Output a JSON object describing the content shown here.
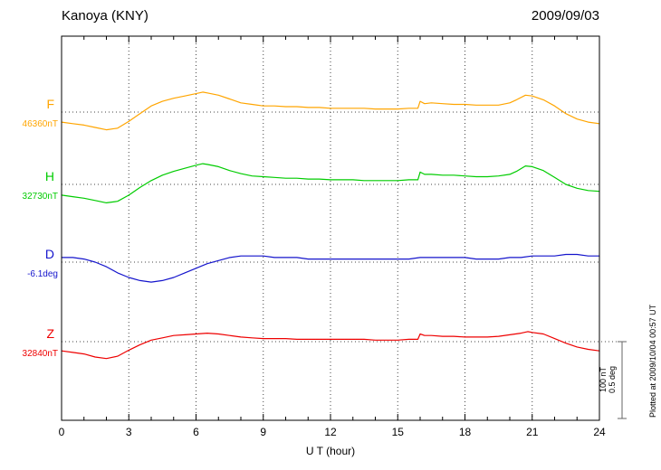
{
  "header": {
    "station": "Kanoya (KNY)",
    "date": "2009/09/03"
  },
  "xaxis": {
    "label": "U T (hour)",
    "ticks": [
      0,
      3,
      6,
      9,
      12,
      15,
      18,
      21,
      24
    ],
    "min": 0,
    "max": 24
  },
  "scale_bar": {
    "label_nt": "100 nT",
    "label_deg": "0.5 deg"
  },
  "footer_note": "Plotted at 2009/10/04 00:57 UT",
  "chart_data": {
    "type": "line",
    "title": "Kanoya (KNY) magnetogram",
    "date": "2009/09/03",
    "xlabel": "U T (hour)",
    "x_range": [
      0,
      24
    ],
    "grid": "dotted vertical every 3 hours, dotted horizontal baseline per component",
    "legend_position": "left labels per trace",
    "scale": {
      "nT_per_division": 100,
      "deg_per_division": 0.5
    },
    "series": [
      {
        "name": "F",
        "unit": "nT",
        "baseline_value": 46360,
        "baseline_label": "46360nT",
        "color": "#FFA500",
        "points": [
          [
            0,
            -13
          ],
          [
            0.5,
            -15
          ],
          [
            1,
            -17
          ],
          [
            1.5,
            -20
          ],
          [
            2,
            -23
          ],
          [
            2.5,
            -21
          ],
          [
            3,
            -12
          ],
          [
            3.5,
            -2
          ],
          [
            4,
            8
          ],
          [
            4.5,
            14
          ],
          [
            5,
            18
          ],
          [
            5.5,
            21
          ],
          [
            6,
            24
          ],
          [
            6.3,
            26
          ],
          [
            6.5,
            25
          ],
          [
            7,
            22
          ],
          [
            7.5,
            17
          ],
          [
            8,
            12
          ],
          [
            8.5,
            10
          ],
          [
            9,
            8
          ],
          [
            9.5,
            8
          ],
          [
            10,
            7
          ],
          [
            10.5,
            7
          ],
          [
            11,
            6
          ],
          [
            11.5,
            6
          ],
          [
            12,
            5
          ],
          [
            12.5,
            5
          ],
          [
            13,
            5
          ],
          [
            13.5,
            5
          ],
          [
            14,
            4
          ],
          [
            14.5,
            4
          ],
          [
            15,
            4
          ],
          [
            15.5,
            5
          ],
          [
            15.9,
            5
          ],
          [
            16,
            14
          ],
          [
            16.2,
            11
          ],
          [
            16.5,
            12
          ],
          [
            17,
            11
          ],
          [
            17.5,
            10
          ],
          [
            18,
            10
          ],
          [
            18.5,
            9
          ],
          [
            19,
            9
          ],
          [
            19.5,
            9
          ],
          [
            20,
            12
          ],
          [
            20.3,
            16
          ],
          [
            20.7,
            22
          ],
          [
            21,
            21
          ],
          [
            21.5,
            16
          ],
          [
            22,
            8
          ],
          [
            22.5,
            -2
          ],
          [
            23,
            -9
          ],
          [
            23.5,
            -13
          ],
          [
            24,
            -15
          ]
        ]
      },
      {
        "name": "H",
        "unit": "nT",
        "baseline_value": 32730,
        "baseline_label": "32730nT",
        "color": "#00CC00",
        "points": [
          [
            0,
            -14
          ],
          [
            0.5,
            -16
          ],
          [
            1,
            -18
          ],
          [
            1.5,
            -21
          ],
          [
            2,
            -24
          ],
          [
            2.5,
            -22
          ],
          [
            3,
            -14
          ],
          [
            3.5,
            -4
          ],
          [
            4,
            5
          ],
          [
            4.5,
            12
          ],
          [
            5,
            17
          ],
          [
            5.5,
            21
          ],
          [
            6,
            25
          ],
          [
            6.3,
            27
          ],
          [
            6.5,
            26
          ],
          [
            7,
            23
          ],
          [
            7.5,
            18
          ],
          [
            8,
            14
          ],
          [
            8.5,
            11
          ],
          [
            9,
            10
          ],
          [
            9.5,
            9
          ],
          [
            10,
            8
          ],
          [
            10.5,
            8
          ],
          [
            11,
            7
          ],
          [
            11.5,
            7
          ],
          [
            12,
            6
          ],
          [
            12.5,
            6
          ],
          [
            13,
            6
          ],
          [
            13.5,
            5
          ],
          [
            14,
            5
          ],
          [
            14.5,
            5
          ],
          [
            15,
            5
          ],
          [
            15.5,
            6
          ],
          [
            15.9,
            6
          ],
          [
            16,
            16
          ],
          [
            16.2,
            13
          ],
          [
            16.5,
            13
          ],
          [
            17,
            12
          ],
          [
            17.5,
            12
          ],
          [
            18,
            11
          ],
          [
            18.5,
            10
          ],
          [
            19,
            10
          ],
          [
            19.5,
            11
          ],
          [
            20,
            13
          ],
          [
            20.3,
            17
          ],
          [
            20.7,
            24
          ],
          [
            21,
            23
          ],
          [
            21.5,
            18
          ],
          [
            22,
            9
          ],
          [
            22.5,
            0
          ],
          [
            23,
            -5
          ],
          [
            23.5,
            -8
          ],
          [
            24,
            -9
          ]
        ]
      },
      {
        "name": "D",
        "unit": "deg",
        "baseline_value": -6.1,
        "baseline_label": "-6.1deg",
        "color": "#1414CC",
        "points": [
          [
            0,
            0.03
          ],
          [
            0.5,
            0.03
          ],
          [
            1,
            0.02
          ],
          [
            1.5,
            0
          ],
          [
            2,
            -0.03
          ],
          [
            2.5,
            -0.07
          ],
          [
            3,
            -0.1
          ],
          [
            3.5,
            -0.12
          ],
          [
            4,
            -0.13
          ],
          [
            4.5,
            -0.12
          ],
          [
            5,
            -0.1
          ],
          [
            5.5,
            -0.07
          ],
          [
            6,
            -0.04
          ],
          [
            6.5,
            -0.01
          ],
          [
            7,
            0.01
          ],
          [
            7.5,
            0.03
          ],
          [
            8,
            0.04
          ],
          [
            8.5,
            0.04
          ],
          [
            9,
            0.04
          ],
          [
            9.5,
            0.03
          ],
          [
            10,
            0.03
          ],
          [
            10.5,
            0.03
          ],
          [
            11,
            0.02
          ],
          [
            11.5,
            0.02
          ],
          [
            12,
            0.02
          ],
          [
            12.5,
            0.02
          ],
          [
            13,
            0.02
          ],
          [
            13.5,
            0.02
          ],
          [
            14,
            0.02
          ],
          [
            14.5,
            0.02
          ],
          [
            15,
            0.02
          ],
          [
            15.5,
            0.02
          ],
          [
            16,
            0.03
          ],
          [
            16.5,
            0.03
          ],
          [
            17,
            0.03
          ],
          [
            17.5,
            0.03
          ],
          [
            18,
            0.03
          ],
          [
            18.5,
            0.02
          ],
          [
            19,
            0.02
          ],
          [
            19.5,
            0.02
          ],
          [
            20,
            0.03
          ],
          [
            20.5,
            0.03
          ],
          [
            21,
            0.04
          ],
          [
            21.5,
            0.04
          ],
          [
            22,
            0.04
          ],
          [
            22.5,
            0.05
          ],
          [
            23,
            0.05
          ],
          [
            23.5,
            0.04
          ],
          [
            24,
            0.04
          ]
        ]
      },
      {
        "name": "Z",
        "unit": "nT",
        "baseline_value": 32840,
        "baseline_label": "32840nT",
        "color": "#EE0000",
        "points": [
          [
            0,
            -12
          ],
          [
            0.5,
            -14
          ],
          [
            1,
            -16
          ],
          [
            1.5,
            -20
          ],
          [
            2,
            -22
          ],
          [
            2.5,
            -19
          ],
          [
            3,
            -11
          ],
          [
            3.5,
            -4
          ],
          [
            4,
            2
          ],
          [
            4.5,
            5
          ],
          [
            5,
            8
          ],
          [
            5.5,
            9
          ],
          [
            6,
            10
          ],
          [
            6.5,
            11
          ],
          [
            7,
            10
          ],
          [
            7.5,
            8
          ],
          [
            8,
            6
          ],
          [
            8.5,
            5
          ],
          [
            9,
            4
          ],
          [
            9.5,
            4
          ],
          [
            10,
            4
          ],
          [
            10.5,
            3
          ],
          [
            11,
            3
          ],
          [
            11.5,
            3
          ],
          [
            12,
            3
          ],
          [
            12.5,
            3
          ],
          [
            13,
            3
          ],
          [
            13.5,
            3
          ],
          [
            14,
            2
          ],
          [
            14.5,
            2
          ],
          [
            15,
            2
          ],
          [
            15.5,
            3
          ],
          [
            15.9,
            3
          ],
          [
            16,
            10
          ],
          [
            16.2,
            8
          ],
          [
            16.5,
            8
          ],
          [
            17,
            7
          ],
          [
            17.5,
            7
          ],
          [
            18,
            6
          ],
          [
            18.5,
            6
          ],
          [
            19,
            6
          ],
          [
            19.5,
            7
          ],
          [
            20,
            9
          ],
          [
            20.5,
            11
          ],
          [
            20.8,
            13
          ],
          [
            21,
            12
          ],
          [
            21.5,
            10
          ],
          [
            22,
            4
          ],
          [
            22.5,
            -2
          ],
          [
            23,
            -7
          ],
          [
            23.5,
            -10
          ],
          [
            24,
            -12
          ]
        ]
      }
    ]
  }
}
